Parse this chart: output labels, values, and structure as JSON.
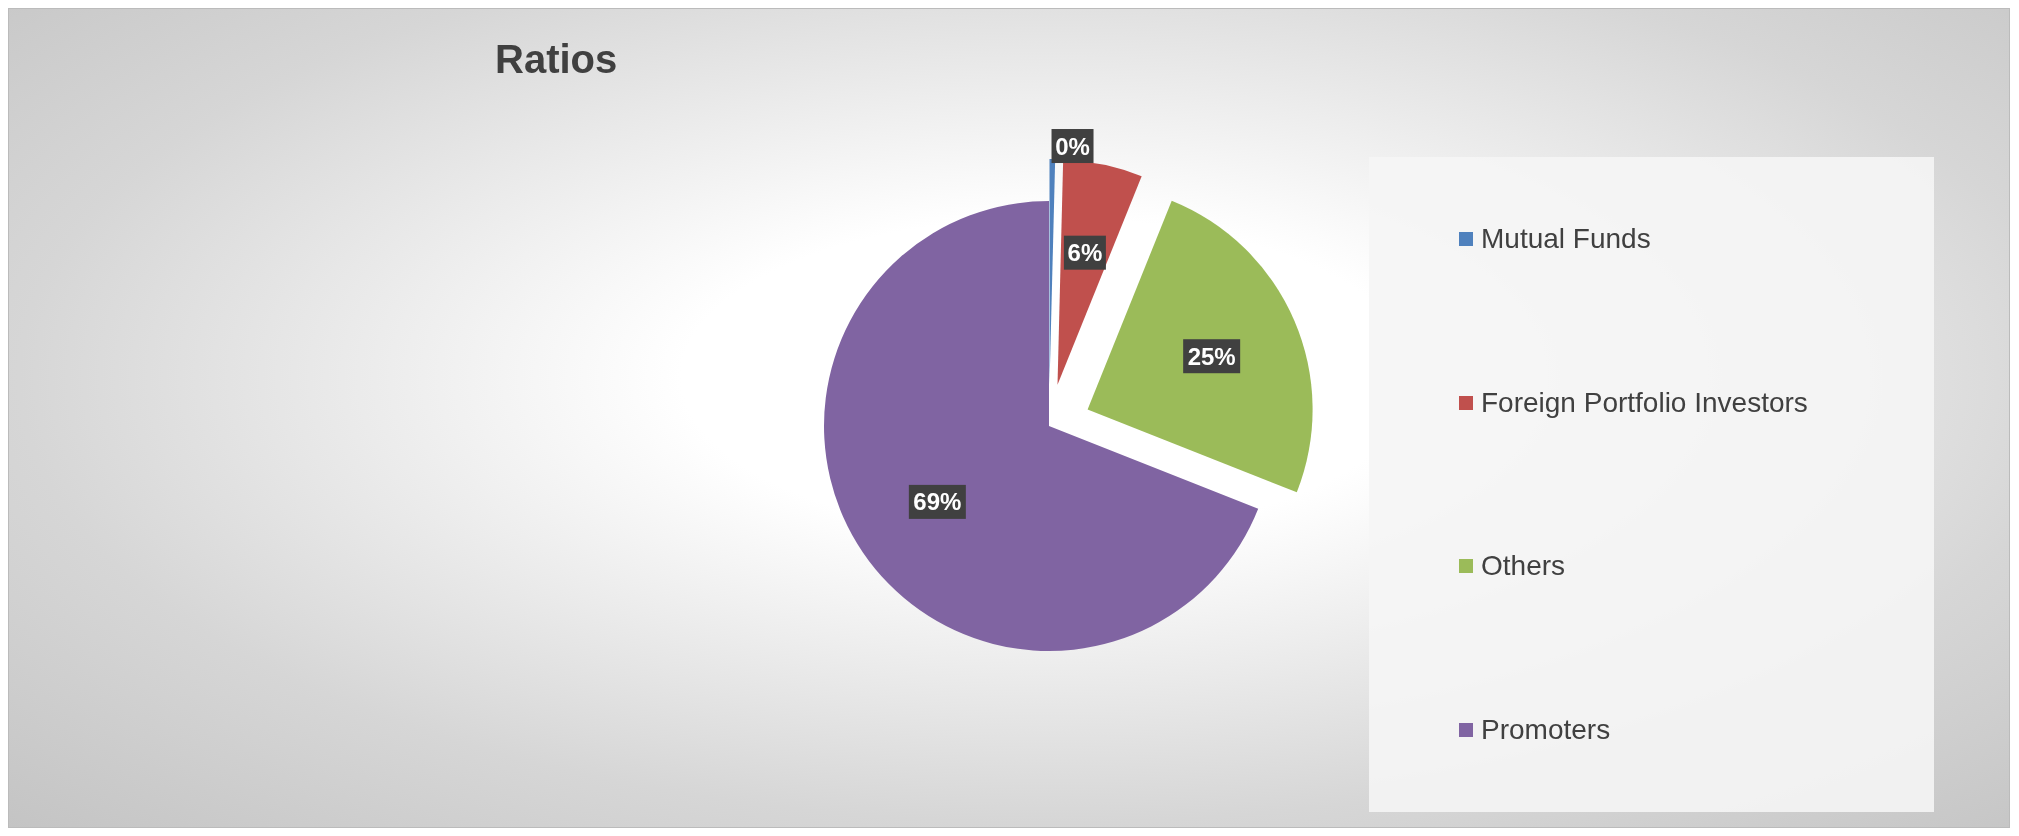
{
  "chart_data": {
    "type": "pie",
    "title": "Ratios",
    "categories": [
      "Mutual Funds",
      "Foreign Portfolio Investors",
      "Others",
      "Promoters"
    ],
    "values": [
      0.4,
      5.7,
      24.9,
      69
    ],
    "value_labels": [
      "0%",
      "6%",
      "25%",
      "69%"
    ],
    "colors": [
      "#4f81bd",
      "#c0504d",
      "#9bbb59",
      "#8064a2"
    ],
    "legend": "right"
  }
}
